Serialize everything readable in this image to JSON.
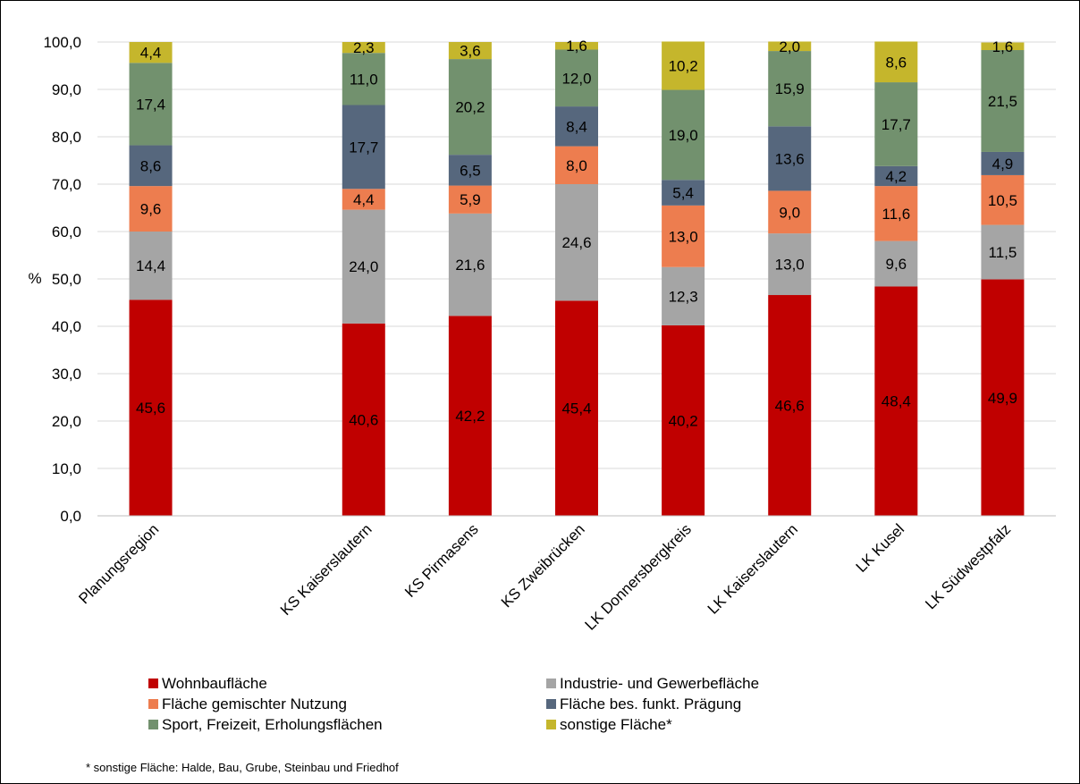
{
  "chart_data": {
    "type": "bar",
    "stacked": true,
    "ylabel": "%",
    "ylim": [
      0,
      100
    ],
    "yticks": [
      "0,0",
      "10,0",
      "20,0",
      "30,0",
      "40,0",
      "50,0",
      "60,0",
      "70,0",
      "80,0",
      "90,0",
      "100,0"
    ],
    "grid": true,
    "legend_position": "bottom",
    "categories": [
      "Planungsregion",
      "",
      "KS Kaiserslautern",
      "KS Pirmasens",
      "KS Zweibrücken",
      "LK Donnersbergkreis",
      "LK Kaiserslautern",
      "LK Kusel",
      "LK Südwestpfalz"
    ],
    "series": [
      {
        "name": "Wohnbaufläche",
        "color": "#c00000",
        "values": [
          45.6,
          null,
          40.6,
          42.2,
          45.4,
          40.2,
          46.6,
          48.4,
          49.9
        ],
        "labels": [
          "45,6",
          "",
          "40,6",
          "42,2",
          "45,4",
          "40,2",
          "46,6",
          "48,4",
          "49,9"
        ]
      },
      {
        "name": "Industrie- und Gewerbefläche",
        "color": "#a5a5a5",
        "values": [
          14.4,
          null,
          24.0,
          21.6,
          24.6,
          12.3,
          13.0,
          9.6,
          11.5
        ],
        "labels": [
          "14,4",
          "",
          "24,0",
          "21,6",
          "24,6",
          "12,3",
          "13,0",
          "9,6",
          "11,5"
        ]
      },
      {
        "name": "Fläche gemischter Nutzung",
        "color": "#ed7d4f",
        "values": [
          9.6,
          null,
          4.4,
          5.9,
          8.0,
          13.0,
          9.0,
          11.6,
          10.5
        ],
        "labels": [
          "9,6",
          "",
          "4,4",
          "5,9",
          "8,0",
          "13,0",
          "9,0",
          "11,6",
          "10,5"
        ]
      },
      {
        "name": "Fläche bes. funkt. Prägung",
        "color": "#56677d",
        "values": [
          8.6,
          null,
          17.7,
          6.5,
          8.4,
          5.4,
          13.6,
          4.2,
          4.9
        ],
        "labels": [
          "8,6",
          "",
          "17,7",
          "6,5",
          "8,4",
          "5,4",
          "13,6",
          "4,2",
          "4,9"
        ]
      },
      {
        "name": "Sport, Freizeit, Erholungsflächen",
        "color": "#72916e",
        "values": [
          17.4,
          null,
          11.0,
          20.2,
          12.0,
          19.0,
          15.9,
          17.7,
          21.5
        ],
        "labels": [
          "17,4",
          "",
          "11,0",
          "20,2",
          "12,0",
          "19,0",
          "15,9",
          "17,7",
          "21,5"
        ]
      },
      {
        "name": "sonstige Fläche*",
        "color": "#c5b62c",
        "values": [
          4.4,
          null,
          2.3,
          3.6,
          1.6,
          10.2,
          2.0,
          8.6,
          1.6
        ],
        "labels": [
          "4,4",
          "",
          "2,3",
          "3,6",
          "1,6",
          "10,2",
          "2,0",
          "8,6",
          "1,6"
        ]
      }
    ],
    "footnote": "* sonstige Fläche: Halde, Bau, Grube, Steinbau und Friedhof"
  }
}
